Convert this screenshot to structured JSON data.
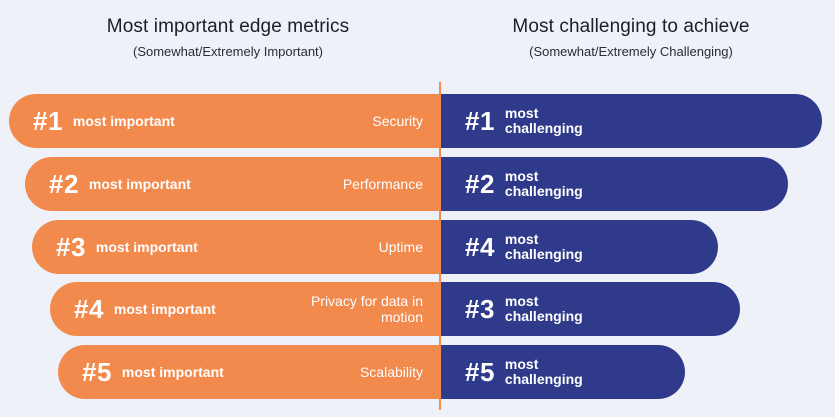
{
  "left_heading": {
    "title": "Most important edge metrics",
    "subtitle": "(Somewhat/Extremely Important)"
  },
  "right_heading": {
    "title": "Most challenging to achieve",
    "subtitle": "(Somewhat/Extremely Challenging)"
  },
  "colors": {
    "important": "#f28a4d",
    "challenging": "#2f3a8a",
    "background": "#eff1f8"
  },
  "rows": [
    {
      "important_rank": "#1",
      "important_label": "most important",
      "metric": "Security",
      "challenging_rank": "#1",
      "challenging_label": "most challenging"
    },
    {
      "important_rank": "#2",
      "important_label": "most important",
      "metric": "Performance",
      "challenging_rank": "#2",
      "challenging_label": "most challenging"
    },
    {
      "important_rank": "#3",
      "important_label": "most important",
      "metric": "Uptime",
      "challenging_rank": "#4",
      "challenging_label": "most challenging"
    },
    {
      "important_rank": "#4",
      "important_label": "most important",
      "metric": "Privacy for data in motion",
      "challenging_rank": "#3",
      "challenging_label": "most challenging"
    },
    {
      "important_rank": "#5",
      "important_label": "most important",
      "metric": "Scalability",
      "challenging_rank": "#5",
      "challenging_label": "most challenging"
    }
  ]
}
